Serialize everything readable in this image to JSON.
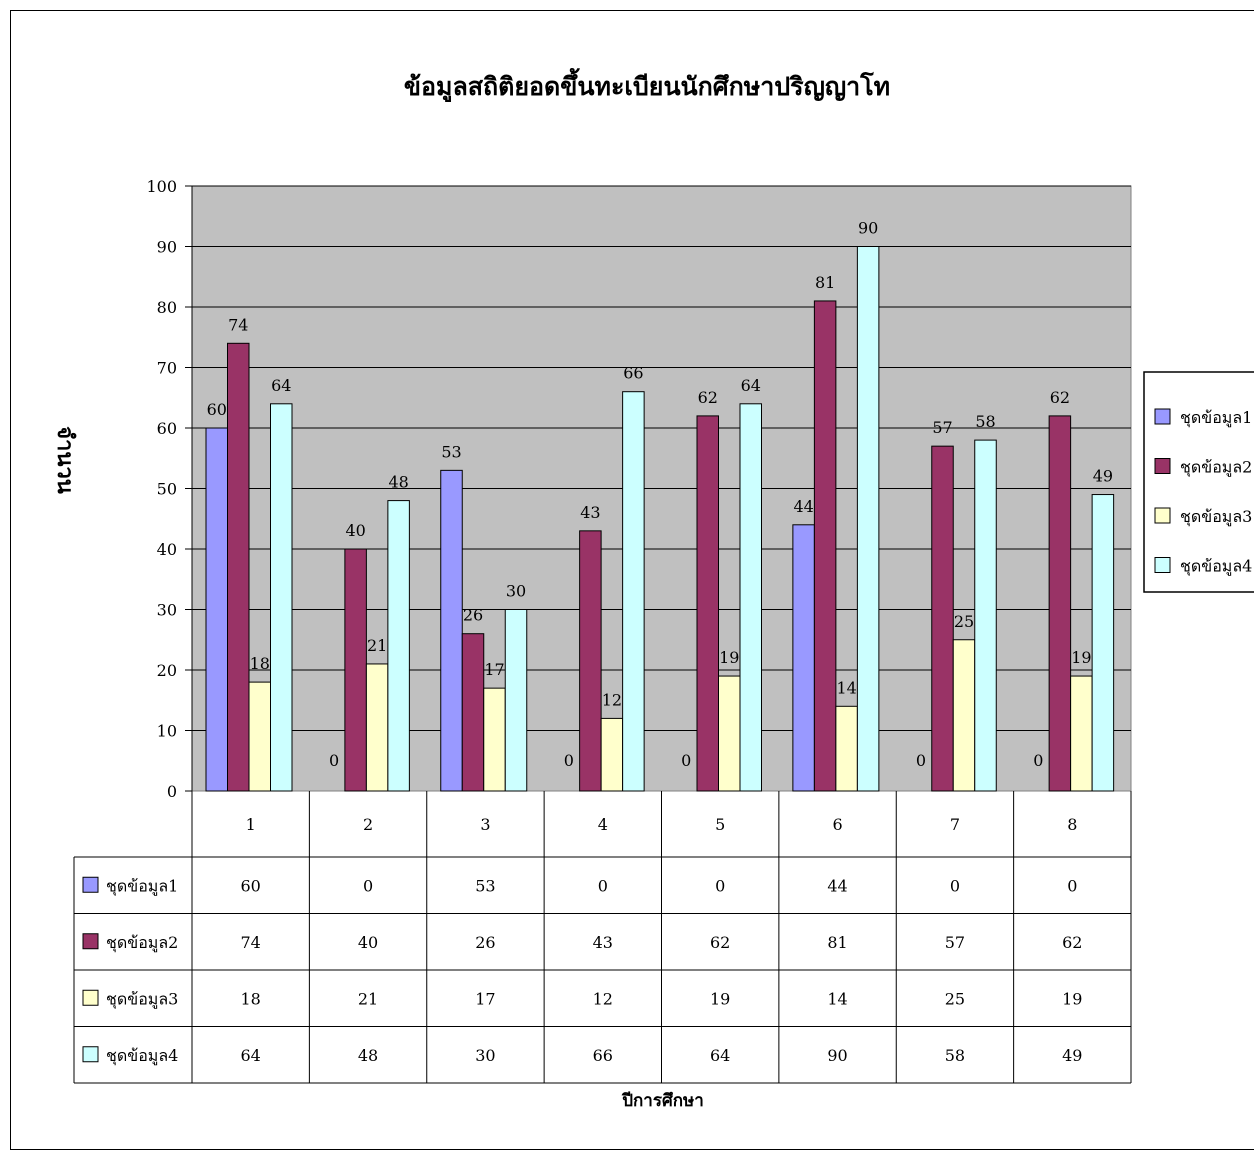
{
  "chart_data": {
    "type": "bar",
    "title": "ข้อมูลสถิติยอดขึ้นทะเบียนนักศึกษาปริญญาโท",
    "xlabel": "ปีการศึกษา",
    "ylabel": "จำนวน",
    "ylim": [
      0,
      100
    ],
    "yticks": [
      0,
      10,
      20,
      30,
      40,
      50,
      60,
      70,
      80,
      90,
      100
    ],
    "grid": true,
    "legend": "right",
    "data_table": true,
    "categories": [
      "1",
      "2",
      "3",
      "4",
      "5",
      "6",
      "7",
      "8"
    ],
    "series": [
      {
        "name": "ชุดข้อมูล1",
        "color": "#9999FF",
        "values": [
          60,
          0,
          53,
          0,
          0,
          44,
          0,
          0
        ]
      },
      {
        "name": "ชุดข้อมูล2",
        "color": "#993366",
        "values": [
          74,
          40,
          26,
          43,
          62,
          81,
          57,
          62
        ]
      },
      {
        "name": "ชุดข้อมูล3",
        "color": "#FFFFCC",
        "values": [
          18,
          21,
          17,
          12,
          19,
          14,
          25,
          19
        ]
      },
      {
        "name": "ชุดข้อมูล4",
        "color": "#CCFFFF",
        "values": [
          64,
          48,
          30,
          66,
          64,
          90,
          58,
          49
        ]
      }
    ],
    "plot_background": "#C0C0C0"
  }
}
